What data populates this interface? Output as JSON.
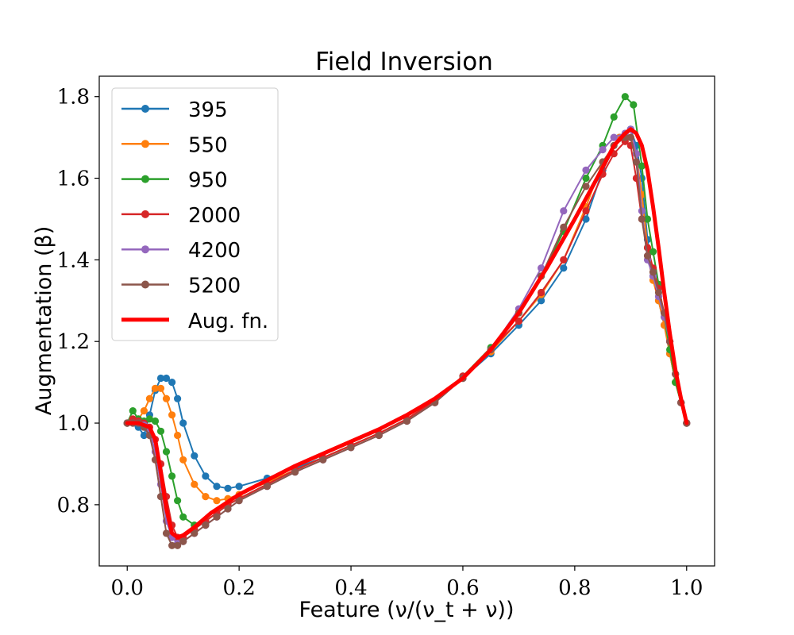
{
  "chart_data": {
    "type": "line",
    "title": "Field Inversion",
    "xlabel": "Feature (ν/(ν_t + ν))",
    "ylabel": "Augmentation (β)",
    "xlim": [
      -0.05,
      1.05
    ],
    "ylim": [
      0.65,
      1.85
    ],
    "xticks": [
      0.0,
      0.2,
      0.4,
      0.6,
      0.8,
      1.0
    ],
    "xtick_labels": [
      "0.0",
      "0.2",
      "0.4",
      "0.6",
      "0.8",
      "1.0"
    ],
    "yticks": [
      0.8,
      1.0,
      1.2,
      1.4,
      1.6,
      1.8
    ],
    "ytick_labels": [
      "0.8",
      "1.0",
      "1.2",
      "1.4",
      "1.6",
      "1.8"
    ],
    "grid": false,
    "legend_position": "top-left",
    "series": [
      {
        "name": "395",
        "color": "#1f77b4",
        "marker": true,
        "x": [
          0.0,
          0.02,
          0.03,
          0.04,
          0.05,
          0.06,
          0.07,
          0.08,
          0.09,
          0.1,
          0.12,
          0.14,
          0.16,
          0.18,
          0.2,
          0.25,
          0.3,
          0.35,
          0.4,
          0.45,
          0.5,
          0.55,
          0.6,
          0.65,
          0.7,
          0.74,
          0.78,
          0.82,
          0.85,
          0.88,
          0.9,
          0.91,
          0.92,
          0.93,
          0.94,
          0.95,
          0.96,
          0.97,
          0.98,
          0.99,
          1.0
        ],
        "y": [
          1.0,
          0.99,
          0.97,
          1.02,
          1.08,
          1.11,
          1.11,
          1.1,
          1.06,
          1.0,
          0.92,
          0.87,
          0.845,
          0.84,
          0.845,
          0.865,
          0.89,
          0.915,
          0.945,
          0.975,
          1.01,
          1.055,
          1.11,
          1.17,
          1.24,
          1.3,
          1.38,
          1.5,
          1.62,
          1.7,
          1.72,
          1.68,
          1.6,
          1.45,
          1.36,
          1.3,
          1.24,
          1.17,
          1.1,
          1.05,
          1.0
        ]
      },
      {
        "name": "550",
        "color": "#ff7f0e",
        "marker": true,
        "x": [
          0.0,
          0.02,
          0.03,
          0.04,
          0.05,
          0.06,
          0.07,
          0.08,
          0.09,
          0.1,
          0.12,
          0.14,
          0.16,
          0.18,
          0.2,
          0.25,
          0.3,
          0.35,
          0.4,
          0.45,
          0.5,
          0.55,
          0.6,
          0.65,
          0.7,
          0.74,
          0.78,
          0.82,
          0.85,
          0.88,
          0.9,
          0.91,
          0.92,
          0.93,
          0.94,
          0.95,
          0.96,
          0.97,
          0.98,
          0.99,
          1.0
        ],
        "y": [
          1.0,
          1.01,
          1.03,
          1.06,
          1.085,
          1.085,
          1.06,
          1.02,
          0.97,
          0.91,
          0.85,
          0.82,
          0.81,
          0.815,
          0.825,
          0.855,
          0.885,
          0.915,
          0.945,
          0.975,
          1.01,
          1.055,
          1.11,
          1.175,
          1.25,
          1.315,
          1.4,
          1.53,
          1.64,
          1.7,
          1.7,
          1.66,
          1.56,
          1.43,
          1.35,
          1.3,
          1.24,
          1.17,
          1.1,
          1.05,
          1.0
        ]
      },
      {
        "name": "950",
        "color": "#2ca02c",
        "marker": true,
        "x": [
          0.0,
          0.01,
          0.02,
          0.03,
          0.04,
          0.05,
          0.06,
          0.07,
          0.08,
          0.09,
          0.1,
          0.12,
          0.14,
          0.16,
          0.18,
          0.2,
          0.25,
          0.3,
          0.35,
          0.4,
          0.45,
          0.5,
          0.55,
          0.6,
          0.65,
          0.7,
          0.74,
          0.78,
          0.82,
          0.85,
          0.87,
          0.89,
          0.905,
          0.92,
          0.93,
          0.94,
          0.95,
          0.96,
          0.97,
          0.98,
          0.99,
          1.0
        ],
        "y": [
          1.0,
          1.03,
          1.01,
          1.005,
          1.01,
          1.005,
          0.98,
          0.93,
          0.87,
          0.81,
          0.77,
          0.75,
          0.76,
          0.78,
          0.8,
          0.815,
          0.85,
          0.885,
          0.915,
          0.945,
          0.975,
          1.01,
          1.055,
          1.115,
          1.185,
          1.27,
          1.36,
          1.47,
          1.6,
          1.68,
          1.75,
          1.8,
          1.78,
          1.63,
          1.5,
          1.42,
          1.34,
          1.26,
          1.18,
          1.1,
          1.05,
          1.0
        ]
      },
      {
        "name": "2000",
        "color": "#d62728",
        "marker": true,
        "x": [
          0.0,
          0.01,
          0.02,
          0.03,
          0.04,
          0.05,
          0.06,
          0.07,
          0.08,
          0.09,
          0.1,
          0.12,
          0.14,
          0.16,
          0.18,
          0.2,
          0.25,
          0.3,
          0.35,
          0.4,
          0.45,
          0.5,
          0.55,
          0.6,
          0.65,
          0.7,
          0.74,
          0.78,
          0.82,
          0.85,
          0.87,
          0.89,
          0.9,
          0.91,
          0.92,
          0.93,
          0.94,
          0.95,
          0.96,
          0.97,
          0.98,
          0.99,
          1.0
        ],
        "y": [
          1.0,
          1.01,
          1.005,
          1.0,
          0.99,
          0.96,
          0.9,
          0.82,
          0.75,
          0.72,
          0.72,
          0.74,
          0.76,
          0.78,
          0.8,
          0.815,
          0.85,
          0.885,
          0.915,
          0.945,
          0.975,
          1.01,
          1.055,
          1.115,
          1.18,
          1.25,
          1.32,
          1.4,
          1.52,
          1.61,
          1.66,
          1.69,
          1.68,
          1.6,
          1.5,
          1.43,
          1.38,
          1.33,
          1.27,
          1.2,
          1.12,
          1.05,
          1.0
        ]
      },
      {
        "name": "4200",
        "color": "#9467bd",
        "marker": true,
        "x": [
          0.0,
          0.01,
          0.02,
          0.03,
          0.04,
          0.05,
          0.06,
          0.07,
          0.08,
          0.09,
          0.1,
          0.12,
          0.14,
          0.16,
          0.18,
          0.2,
          0.25,
          0.3,
          0.35,
          0.4,
          0.45,
          0.5,
          0.55,
          0.6,
          0.65,
          0.7,
          0.74,
          0.78,
          0.82,
          0.85,
          0.87,
          0.89,
          0.9,
          0.91,
          0.92,
          0.93,
          0.94,
          0.95,
          0.96,
          0.97,
          0.98,
          0.99,
          1.0
        ],
        "y": [
          1.0,
          1.0,
          1.0,
          0.995,
          0.98,
          0.93,
          0.85,
          0.76,
          0.72,
          0.705,
          0.71,
          0.73,
          0.75,
          0.77,
          0.79,
          0.81,
          0.845,
          0.88,
          0.91,
          0.94,
          0.97,
          1.005,
          1.05,
          1.11,
          1.18,
          1.28,
          1.38,
          1.52,
          1.62,
          1.67,
          1.7,
          1.71,
          1.72,
          1.66,
          1.52,
          1.4,
          1.36,
          1.31,
          1.26,
          1.2,
          1.12,
          1.05,
          1.0
        ]
      },
      {
        "name": "5200",
        "color": "#8c564b",
        "marker": true,
        "x": [
          0.0,
          0.01,
          0.02,
          0.03,
          0.04,
          0.05,
          0.06,
          0.07,
          0.08,
          0.09,
          0.1,
          0.12,
          0.14,
          0.16,
          0.18,
          0.2,
          0.25,
          0.3,
          0.35,
          0.4,
          0.45,
          0.5,
          0.55,
          0.6,
          0.65,
          0.7,
          0.74,
          0.78,
          0.82,
          0.85,
          0.87,
          0.89,
          0.9,
          0.91,
          0.92,
          0.93,
          0.94,
          0.95,
          0.96,
          0.97,
          0.98,
          0.99,
          1.0
        ],
        "y": [
          1.0,
          1.0,
          1.0,
          0.99,
          0.97,
          0.91,
          0.82,
          0.73,
          0.7,
          0.7,
          0.71,
          0.73,
          0.75,
          0.77,
          0.79,
          0.81,
          0.845,
          0.88,
          0.91,
          0.94,
          0.97,
          1.005,
          1.05,
          1.11,
          1.18,
          1.27,
          1.36,
          1.48,
          1.58,
          1.64,
          1.68,
          1.7,
          1.7,
          1.64,
          1.5,
          1.41,
          1.37,
          1.32,
          1.27,
          1.2,
          1.12,
          1.05,
          1.0
        ]
      },
      {
        "name": "Aug. fn.",
        "color": "#ff0000",
        "marker": false,
        "width": 5,
        "x": [
          0.0,
          0.02,
          0.04,
          0.05,
          0.06,
          0.07,
          0.08,
          0.09,
          0.1,
          0.12,
          0.15,
          0.2,
          0.25,
          0.3,
          0.35,
          0.4,
          0.45,
          0.5,
          0.55,
          0.6,
          0.65,
          0.7,
          0.75,
          0.8,
          0.84,
          0.87,
          0.89,
          0.9,
          0.91,
          0.92,
          0.93,
          0.94,
          0.95,
          0.96,
          0.97,
          0.98,
          0.99,
          1.0
        ],
        "y": [
          1.0,
          1.0,
          0.99,
          0.96,
          0.88,
          0.79,
          0.73,
          0.72,
          0.725,
          0.745,
          0.78,
          0.825,
          0.86,
          0.895,
          0.925,
          0.955,
          0.985,
          1.02,
          1.06,
          1.11,
          1.18,
          1.27,
          1.38,
          1.5,
          1.6,
          1.68,
          1.71,
          1.72,
          1.71,
          1.68,
          1.62,
          1.53,
          1.43,
          1.32,
          1.22,
          1.13,
          1.06,
          1.0
        ]
      }
    ]
  }
}
